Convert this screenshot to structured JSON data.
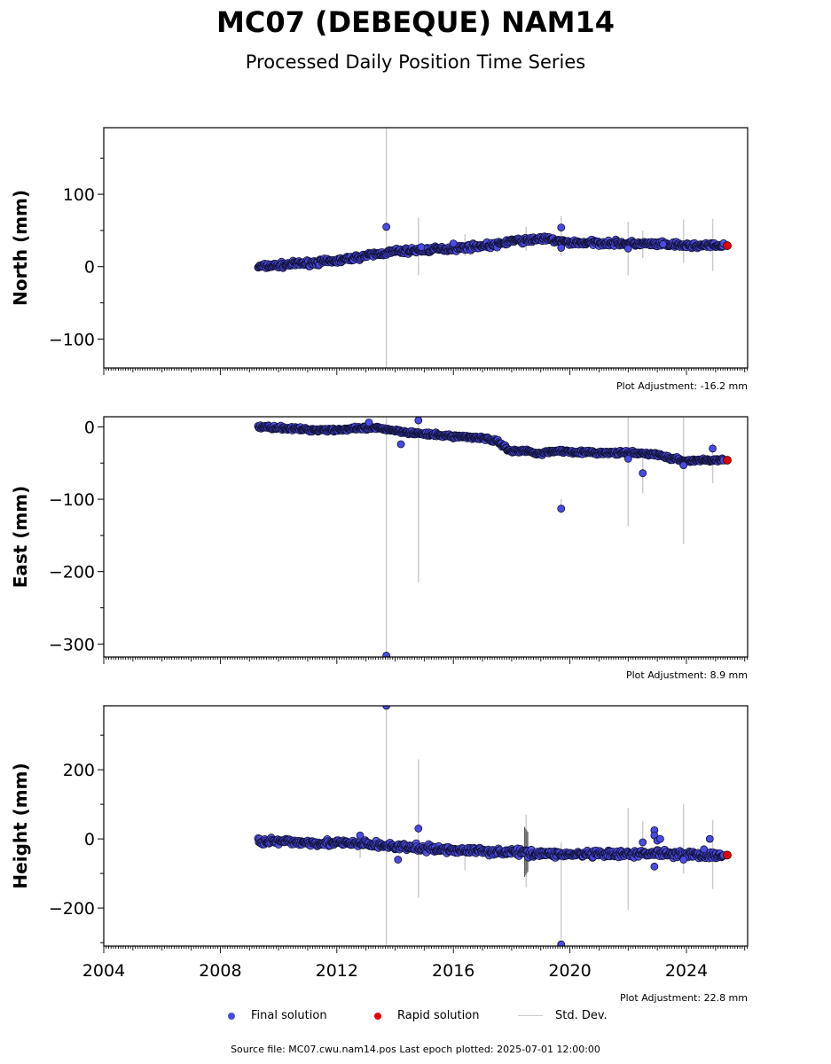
{
  "header": {
    "title": "MC07 (DEBEQUE) NAM14",
    "subtitle": "Processed Daily Position Time Series"
  },
  "footer": {
    "source": "Source file: MC07.cwu.nam14.pos  Last epoch plotted: 2025-07-01 12:00:00"
  },
  "legend": {
    "final_label": "Final solution",
    "rapid_label": "Rapid solution",
    "std_label": "Std. Dev."
  },
  "colors": {
    "final": "#4a4ae6",
    "rapid": "#e60000",
    "std": "#cccccc",
    "edge": "#111133"
  },
  "chart_data": [
    {
      "type": "scatter",
      "ylabel": "North (mm)",
      "adjustment": "Plot Adjustment: -16.2 mm",
      "xlim": [
        2004.0,
        2026.1
      ],
      "ylim": [
        -140,
        192
      ],
      "yticks": [
        -100,
        0,
        100
      ],
      "final_trend": [
        [
          2009.3,
          0
        ],
        [
          2010.0,
          2
        ],
        [
          2011.0,
          5
        ],
        [
          2012.0,
          8
        ],
        [
          2013.0,
          15
        ],
        [
          2014.0,
          21
        ],
        [
          2015.0,
          23
        ],
        [
          2016.0,
          25
        ],
        [
          2017.0,
          29
        ],
        [
          2017.5,
          30
        ],
        [
          2018.0,
          36
        ],
        [
          2018.5,
          36
        ],
        [
          2019.0,
          39
        ],
        [
          2019.5,
          36
        ],
        [
          2020.0,
          33
        ],
        [
          2021.0,
          33
        ],
        [
          2022.0,
          32
        ],
        [
          2023.0,
          31
        ],
        [
          2024.0,
          29
        ],
        [
          2025.3,
          29
        ]
      ],
      "final_outliers": [
        [
          2013.7,
          55
        ],
        [
          2014.9,
          27
        ],
        [
          2016.0,
          32
        ],
        [
          2019.7,
          54
        ],
        [
          2019.7,
          26
        ],
        [
          2022.0,
          25
        ],
        [
          2023.2,
          31
        ]
      ],
      "rapid_points": [
        [
          2025.4,
          29
        ]
      ],
      "std_bars": [
        [
          2013.7,
          -140,
          192
        ],
        [
          2014.8,
          -12,
          68
        ],
        [
          2016.4,
          15,
          45
        ],
        [
          2018.5,
          22,
          55
        ],
        [
          2019.7,
          15,
          70
        ],
        [
          2022.0,
          -12,
          62
        ],
        [
          2022.5,
          12,
          50
        ],
        [
          2023.9,
          5,
          65
        ],
        [
          2024.9,
          -6,
          66
        ]
      ],
      "noise": 3
    },
    {
      "type": "scatter",
      "ylabel": "East (mm)",
      "adjustment": "Plot Adjustment: 8.9 mm",
      "xlim": [
        2004.0,
        2026.1
      ],
      "ylim": [
        -318,
        14
      ],
      "yticks": [
        -300,
        -200,
        -100,
        0
      ],
      "final_trend": [
        [
          2009.3,
          0
        ],
        [
          2010.0,
          -1
        ],
        [
          2011.0,
          -4
        ],
        [
          2012.0,
          -4
        ],
        [
          2013.0,
          -2
        ],
        [
          2013.5,
          -2
        ],
        [
          2014.0,
          -5
        ],
        [
          2015.0,
          -10
        ],
        [
          2016.0,
          -13
        ],
        [
          2017.0,
          -15
        ],
        [
          2017.5,
          -20
        ],
        [
          2018.0,
          -34
        ],
        [
          2018.5,
          -33
        ],
        [
          2019.0,
          -37
        ],
        [
          2019.5,
          -33
        ],
        [
          2020.0,
          -34
        ],
        [
          2021.0,
          -36
        ],
        [
          2022.0,
          -36
        ],
        [
          2023.0,
          -38
        ],
        [
          2023.5,
          -44
        ],
        [
          2024.0,
          -47
        ],
        [
          2024.5,
          -46
        ],
        [
          2025.3,
          -46
        ]
      ],
      "final_outliers": [
        [
          2013.1,
          6
        ],
        [
          2014.2,
          -24
        ],
        [
          2014.8,
          9
        ],
        [
          2019.7,
          -113
        ],
        [
          2022.0,
          -44
        ],
        [
          2022.5,
          -64
        ],
        [
          2023.9,
          -53
        ],
        [
          2024.9,
          -30
        ],
        [
          2013.7,
          -316
        ]
      ],
      "rapid_points": [
        [
          2025.4,
          -46
        ]
      ],
      "std_bars": [
        [
          2013.7,
          -318,
          14
        ],
        [
          2014.8,
          -215,
          14
        ],
        [
          2019.7,
          -120,
          -100
        ],
        [
          2022.0,
          -137,
          14
        ],
        [
          2022.5,
          -92,
          -38
        ],
        [
          2023.9,
          -162,
          14
        ],
        [
          2024.9,
          -78,
          -22
        ],
        [
          2018.5,
          -40,
          -25
        ]
      ],
      "noise": 2
    },
    {
      "type": "scatter",
      "ylabel": "Height (mm)",
      "adjustment": "Plot Adjustment: 22.8 mm",
      "xlim": [
        2004.0,
        2026.1
      ],
      "ylim": [
        -310,
        385
      ],
      "yticks": [
        -200,
        0,
        200
      ],
      "xticks": [
        2004,
        2008,
        2012,
        2016,
        2020,
        2024
      ],
      "final_trend": [
        [
          2009.3,
          -5
        ],
        [
          2010.0,
          -8
        ],
        [
          2011.0,
          -10
        ],
        [
          2012.0,
          -12
        ],
        [
          2013.0,
          -15
        ],
        [
          2014.0,
          -22
        ],
        [
          2015.0,
          -28
        ],
        [
          2016.0,
          -32
        ],
        [
          2017.0,
          -35
        ],
        [
          2018.0,
          -38
        ],
        [
          2019.0,
          -42
        ],
        [
          2020.0,
          -45
        ],
        [
          2021.0,
          -45
        ],
        [
          2022.0,
          -45
        ],
        [
          2023.0,
          -40
        ],
        [
          2024.0,
          -45
        ],
        [
          2025.3,
          -50
        ]
      ],
      "final_outliers": [
        [
          2013.7,
          385
        ],
        [
          2014.1,
          -60
        ],
        [
          2014.8,
          30
        ],
        [
          2019.7,
          -305
        ],
        [
          2022.5,
          -10
        ],
        [
          2022.9,
          25
        ],
        [
          2022.9,
          10
        ],
        [
          2023.0,
          -5
        ],
        [
          2023.1,
          0
        ],
        [
          2022.9,
          -80
        ],
        [
          2023.9,
          -60
        ],
        [
          2024.8,
          0
        ],
        [
          2024.6,
          -30
        ],
        [
          2012.8,
          10
        ]
      ],
      "rapid_points": [
        [
          2025.4,
          -47
        ]
      ],
      "std_bars": [
        [
          2013.7,
          -310,
          385
        ],
        [
          2014.8,
          -170,
          230
        ],
        [
          2016.4,
          -90,
          -20
        ],
        [
          2018.5,
          -140,
          70
        ],
        [
          2019.7,
          -290,
          -10
        ],
        [
          2022.0,
          -205,
          90
        ],
        [
          2022.5,
          -60,
          50
        ],
        [
          2023.9,
          -100,
          100
        ],
        [
          2024.9,
          -145,
          55
        ],
        [
          2012.8,
          -55,
          20
        ]
      ],
      "dark_bars": [
        [
          2018.5,
          -110,
          35
        ]
      ],
      "noise": 8
    }
  ]
}
